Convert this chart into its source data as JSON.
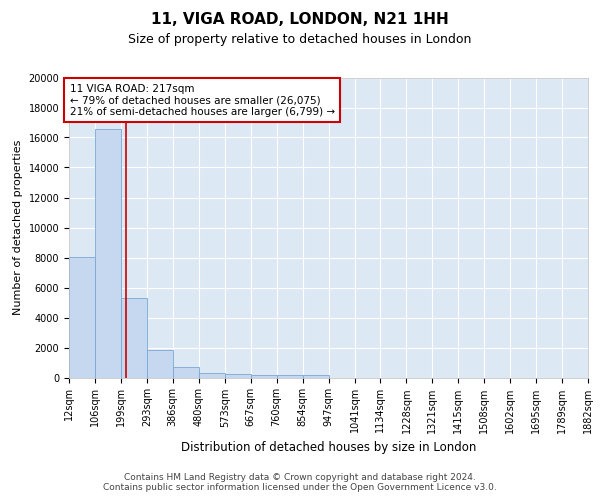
{
  "title1": "11, VIGA ROAD, LONDON, N21 1HH",
  "title2": "Size of property relative to detached houses in London",
  "xlabel": "Distribution of detached houses by size in London",
  "ylabel": "Number of detached properties",
  "bar_color": "#c5d8f0",
  "bar_edge_color": "#7aa8d4",
  "bg_color": "#dde8f5",
  "grid_color": "#ffffff",
  "vline_color": "#cc0000",
  "vline_x": 217,
  "annotation_text": "11 VIGA ROAD: 217sqm\n← 79% of detached houses are smaller (26,075)\n21% of semi-detached houses are larger (6,799) →",
  "bin_edges": [
    12,
    106,
    199,
    293,
    386,
    480,
    573,
    667,
    760,
    854,
    947,
    1041,
    1134,
    1228,
    1321,
    1415,
    1508,
    1602,
    1695,
    1789,
    1882
  ],
  "bin_counts": [
    8050,
    16550,
    5300,
    1850,
    700,
    320,
    230,
    195,
    170,
    140,
    0,
    0,
    0,
    0,
    0,
    0,
    0,
    0,
    0,
    0
  ],
  "ylim": [
    0,
    20000
  ],
  "yticks": [
    0,
    2000,
    4000,
    6000,
    8000,
    10000,
    12000,
    14000,
    16000,
    18000,
    20000
  ],
  "footer_text": "Contains HM Land Registry data © Crown copyright and database right 2024.\nContains public sector information licensed under the Open Government Licence v3.0.",
  "title1_fontsize": 11,
  "title2_fontsize": 9,
  "xlabel_fontsize": 8.5,
  "ylabel_fontsize": 8,
  "tick_fontsize": 7,
  "annotation_fontsize": 7.5,
  "footer_fontsize": 6.5
}
